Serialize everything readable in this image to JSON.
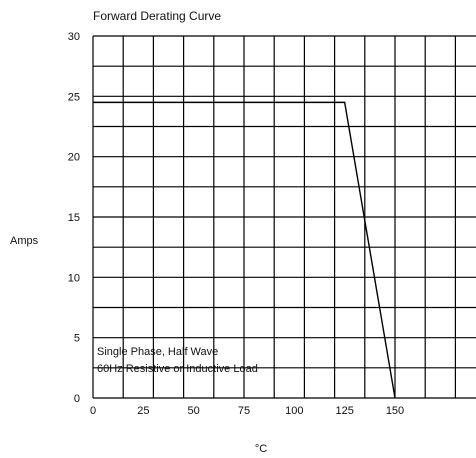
{
  "chart_data": {
    "type": "line",
    "title": "Forward Derating Curve",
    "xlabel": "°C",
    "ylabel": "Amps",
    "xlim": [
      0,
      150
    ],
    "ylim": [
      0,
      30
    ],
    "x_ticks": [
      "0",
      "25",
      "50",
      "75",
      "100",
      "125",
      "150"
    ],
    "y_ticks": [
      "0",
      "5",
      "10",
      "15",
      "20",
      "25",
      "30"
    ],
    "grid": true,
    "series": [
      {
        "x": [
          0,
          125,
          150
        ],
        "y": [
          24.5,
          24.5,
          0
        ]
      }
    ],
    "annotations": [
      "Single Phase, Half Wave",
      "60Hz Resistive or Inductive Load"
    ],
    "line_color": "#000000",
    "text_color": "#111111"
  }
}
